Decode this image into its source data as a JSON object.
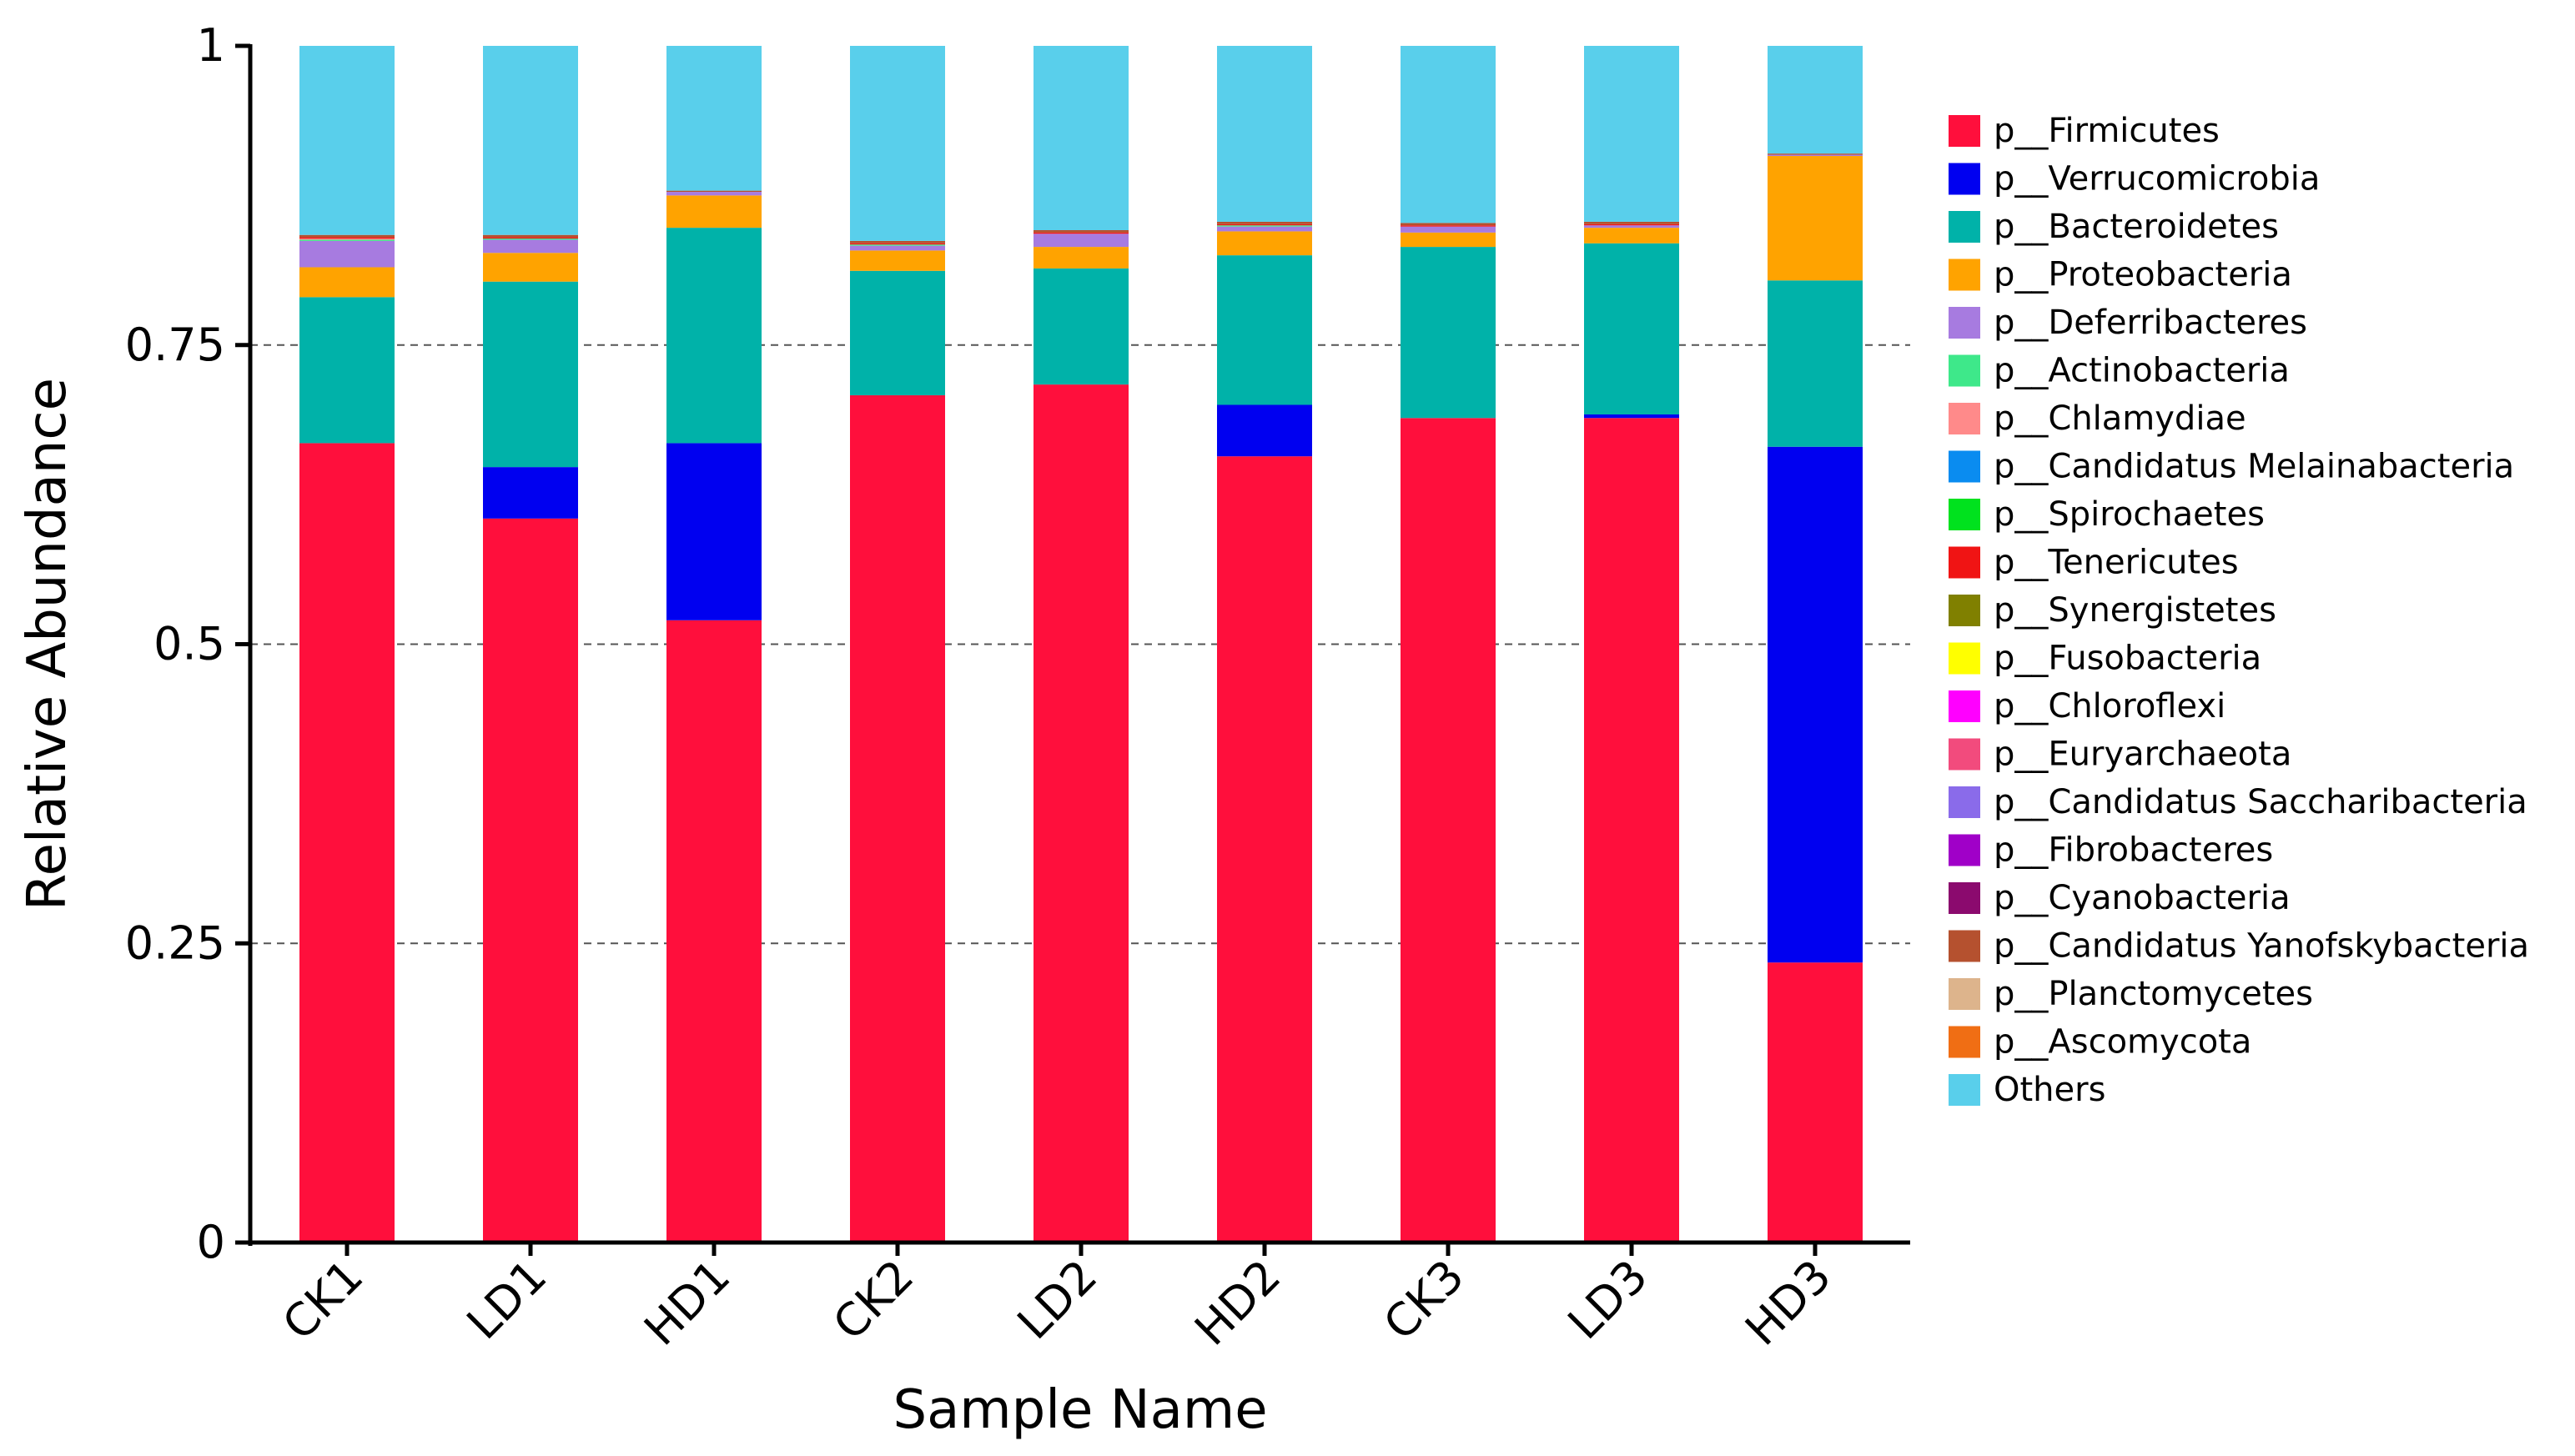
{
  "chart_data": {
    "type": "bar",
    "stacked": true,
    "title": "",
    "xlabel": "Sample Name",
    "ylabel": "Relative Abundance",
    "ylim": [
      0,
      1
    ],
    "yticks": [
      0,
      0.25,
      0.5,
      0.75,
      1
    ],
    "ytick_labels": [
      "0",
      "0.25",
      "0.5",
      "0.75",
      "1"
    ],
    "grid": "dashed horizontal at 0.25, 0.5, 0.75",
    "legend_position": "right",
    "categories": [
      "CK1",
      "LD1",
      "HD1",
      "CK2",
      "LD2",
      "HD2",
      "CK3",
      "LD3",
      "HD3"
    ],
    "series": [
      {
        "name": "p__Firmicutes",
        "color": "#FF0F3C",
        "values": [
          0.668,
          0.605,
          0.52,
          0.708,
          0.717,
          0.657,
          0.689,
          0.689,
          0.234
        ]
      },
      {
        "name": "p__Verrucomicrobia",
        "color": "#0000F0",
        "values": [
          0.0,
          0.043,
          0.148,
          0.0,
          0.0,
          0.043,
          0.0,
          0.003,
          0.431
        ]
      },
      {
        "name": "p__Bacteroidetes",
        "color": "#00B2A9",
        "values": [
          0.122,
          0.155,
          0.18,
          0.104,
          0.097,
          0.125,
          0.143,
          0.143,
          0.139
        ]
      },
      {
        "name": "p__Proteobacteria",
        "color": "#FFA300",
        "values": [
          0.025,
          0.024,
          0.027,
          0.017,
          0.018,
          0.02,
          0.012,
          0.013,
          0.104
        ]
      },
      {
        "name": "p__Deferribacteres",
        "color": "#A77BE0",
        "values": [
          0.022,
          0.011,
          0.003,
          0.004,
          0.011,
          0.004,
          0.005,
          0.002,
          0.001
        ]
      },
      {
        "name": "p__Actinobacteria",
        "color": "#3EE88A",
        "values": [
          0.001,
          0.001,
          0.0,
          0.001,
          0.0,
          0.001,
          0.0,
          0.0,
          0.0
        ]
      },
      {
        "name": "p__Chlamydiae",
        "color": "#FF8A8A",
        "values": [
          0.001,
          0.0,
          0.0,
          0.0,
          0.0,
          0.0,
          0.0,
          0.0,
          0.0
        ]
      },
      {
        "name": "p__Candidatus Melainabacteria",
        "color": "#0A8CF0",
        "values": [
          0.0,
          0.0,
          0.0,
          0.0,
          0.0,
          0.0,
          0.0,
          0.0,
          0.0
        ]
      },
      {
        "name": "p__Spirochaetes",
        "color": "#00E21E",
        "values": [
          0.0,
          0.0,
          0.0,
          0.0,
          0.0,
          0.0,
          0.0,
          0.0,
          0.0
        ]
      },
      {
        "name": "p__Tenericutes",
        "color": "#F01414",
        "values": [
          0.001,
          0.001,
          0.0,
          0.001,
          0.001,
          0.001,
          0.001,
          0.001,
          0.0
        ]
      },
      {
        "name": "p__Synergistetes",
        "color": "#808000",
        "values": [
          0.0,
          0.0,
          0.0,
          0.0,
          0.0,
          0.0,
          0.0,
          0.0,
          0.0
        ]
      },
      {
        "name": "p__Fusobacteria",
        "color": "#FFFF00",
        "values": [
          0.0,
          0.0,
          0.0,
          0.0,
          0.0,
          0.0,
          0.0,
          0.0,
          0.0
        ]
      },
      {
        "name": "p__Chloroflexi",
        "color": "#FF00FF",
        "values": [
          0.0,
          0.0,
          0.0,
          0.0,
          0.0,
          0.0,
          0.0,
          0.0,
          0.0
        ]
      },
      {
        "name": "p__Euryarchaeota",
        "color": "#F24B7D",
        "values": [
          0.0,
          0.0,
          0.0,
          0.0,
          0.0,
          0.0,
          0.0,
          0.0,
          0.0
        ]
      },
      {
        "name": "p__Candidatus Saccharibacteria",
        "color": "#8A6BEA",
        "values": [
          0.0,
          0.0,
          0.0,
          0.0,
          0.0,
          0.0,
          0.0,
          0.0,
          0.0
        ]
      },
      {
        "name": "p__Fibrobacteres",
        "color": "#A000C8",
        "values": [
          0.0,
          0.0,
          0.0,
          0.0,
          0.0,
          0.0,
          0.0,
          0.0,
          0.0
        ]
      },
      {
        "name": "p__Cyanobacteria",
        "color": "#8B0A6E",
        "values": [
          0.0,
          0.0,
          0.0,
          0.0,
          0.0,
          0.0,
          0.0,
          0.0,
          0.0
        ]
      },
      {
        "name": "p__Candidatus Yanofskybacteria",
        "color": "#B5512F",
        "values": [
          0.002,
          0.002,
          0.001,
          0.002,
          0.002,
          0.002,
          0.002,
          0.002,
          0.001
        ]
      },
      {
        "name": "p__Planctomycetes",
        "color": "#DDB48C",
        "values": [
          0.0,
          0.0,
          0.0,
          0.0,
          0.0,
          0.0,
          0.0,
          0.0,
          0.0
        ]
      },
      {
        "name": "p__Ascomycota",
        "color": "#F06E14",
        "values": [
          0.0,
          0.0,
          0.0,
          0.0,
          0.0,
          0.0,
          0.0,
          0.0,
          0.0
        ]
      },
      {
        "name": "Others",
        "color": "#59CFEB",
        "values": [
          0.158,
          0.158,
          0.121,
          0.163,
          0.154,
          0.147,
          0.148,
          0.147,
          0.09
        ]
      }
    ]
  }
}
